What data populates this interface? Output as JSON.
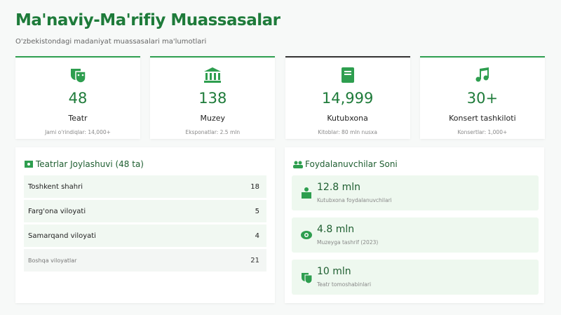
{
  "header": {
    "title": "Ma'naviy-Ma'rifiy Muassasalar",
    "subtitle": "O'zbekistondagi madaniyat muassasalari ma'lumotlari"
  },
  "stats": [
    {
      "value": "48",
      "label": "Teatr",
      "note": "Jami o'rindiqlar: 14,000+"
    },
    {
      "value": "138",
      "label": "Muzey",
      "note": "Eksponatlar: 2.5 mln"
    },
    {
      "value": "14,999",
      "label": "Kutubxona",
      "note": "Kitoblar: 80 mln nusxa"
    },
    {
      "value": "30+",
      "label": "Konsert tashkiloti",
      "note": "Konsertlar: 1,000+"
    }
  ],
  "left_panel": {
    "title": "Teatrlar Joylashuvi (48 ta)",
    "rows": [
      {
        "name": "Toshkent shahri",
        "count": "18"
      },
      {
        "name": "Farg'ona viloyati",
        "count": "5"
      },
      {
        "name": "Samarqand viloyati",
        "count": "4"
      },
      {
        "name": "Boshqa viloyatlar",
        "count": "21"
      }
    ]
  },
  "right_panel": {
    "title": "Foydalanuvchilar Soni",
    "items": [
      {
        "value": "12.8 mln",
        "label": "Kutubxona foydalanuvchilari"
      },
      {
        "value": "4.8 mln",
        "label": "Muzeyga tashrif (2023)"
      },
      {
        "value": "10 mln",
        "label": "Teatr tomoshabinlari"
      }
    ]
  }
}
